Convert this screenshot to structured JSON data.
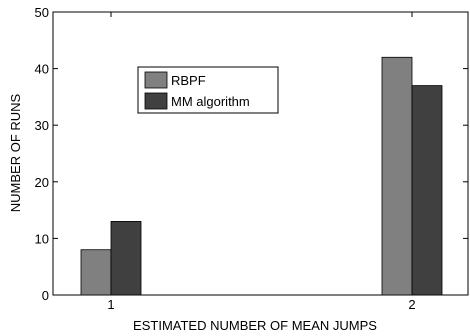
{
  "chart_data": {
    "type": "bar",
    "categories": [
      "1",
      "2"
    ],
    "series": [
      {
        "name": "RBPF",
        "values": [
          8,
          42
        ],
        "color": "#808080"
      },
      {
        "name": "MM algorithm",
        "values": [
          13,
          37
        ],
        "color": "#404040"
      }
    ],
    "xlabel": "ESTIMATED NUMBER OF MEAN JUMPS",
    "ylabel": "NUMBER OF RUNS",
    "ylim": [
      0,
      50
    ],
    "yticks": [
      0,
      10,
      20,
      30,
      40,
      50
    ],
    "grid": false,
    "legend_position": "top-left-center"
  }
}
